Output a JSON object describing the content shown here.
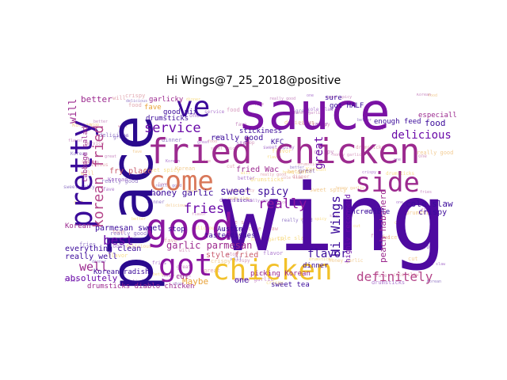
{
  "title": "Hi Wings@7_25_2018@positive",
  "words": {
    "sauce": "sauce",
    "wing": "wing",
    "place": "place",
    "fried_chicken": "fried chicken",
    "ve": "ve",
    "pretty": "pretty",
    "good": "good",
    "come": "come",
    "side": "side",
    "got": "got",
    "chicken": "chicken",
    "korean_fried": "korean fried",
    "service": "service",
    "delicious": "delicious",
    "fries": "fries",
    "really": "really",
    "honey_garlic": "honey garlic",
    "sweet_spicy": "sweet spicy",
    "best": "best",
    "garlic_parmesan": "garlic parmesan",
    "flavor": "flavor",
    "definitely": "definitely",
    "well": "well",
    "everything_clean": "everything clean",
    "really_well": "really well",
    "absolutely": "absolutely",
    "hi_wings": "Hi Wings",
    "great": "great",
    "cole_slaw": "cole slaw",
    "crispy": "crispy",
    "food": "food",
    "really_good": "really good",
    "maybe": "Maybe",
    "parmesan_sweet": "parmesan sweet",
    "fry_place": "fry place",
    "better": "better",
    "will": "will",
    "peach_habanero": "peach habanero",
    "highly_recommend": "highly recommend",
    "incredible": "incredible",
    "got_half": "got HALF",
    "kfc": "KFC",
    "fried_wac": "fried Wac",
    "dinner": "dinner",
    "korean": "Korean",
    "drumsticks": "drumsticks",
    "one": "one",
    "stop": "stop",
    "austin": "Austin",
    "style_fried": "style fried",
    "korean_radish": "Korean radish",
    "cabbage_salad": "cabbage salad",
    "garlicky": "garlicky",
    "sweet_tea": "sweet tea",
    "sure": "sure",
    "especially": "especially",
    "enough_feed": "enough feed",
    "fave": "fave",
    "cut": "cut",
    "dishes": "dishes",
    "tastes": "tastes",
    "picking_korean": "picking Korean",
    "drumsticks_diablo_chicken": "drumsticks diablo chicken",
    "stickiness": "stickiness",
    "good_mix": "good mix"
  },
  "colors": {
    "deep_indigo": "#2a0a8e",
    "indigo": "#3b0a9a",
    "purple": "#6a0aa8",
    "violet": "#8a15a0",
    "magenta": "#9c2a8f",
    "orchid": "#b5468a",
    "rose": "#c95e6e",
    "salmon": "#d9785a",
    "amber": "#e8a23a",
    "gold": "#f2c12a"
  }
}
